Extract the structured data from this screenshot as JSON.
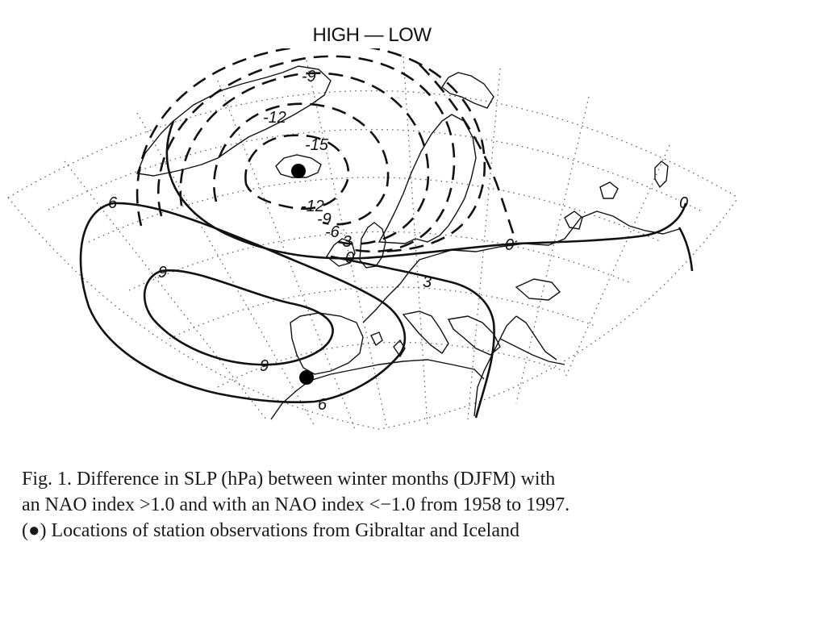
{
  "title": "HIGH — LOW",
  "contour_labels": {
    "neg9": "-9",
    "neg12_top": "-12",
    "neg15": "-15",
    "neg12_low": "-12",
    "neg9_low": "-9",
    "neg6": "-6",
    "neg3": "-3",
    "zero_west": "0",
    "zero_mid": "0",
    "zero_east": "0",
    "pos3": "3",
    "pos6_north": "6",
    "pos6_south": "6",
    "pos9_north": "9",
    "pos9_south": "9"
  },
  "stations": [
    "Gibraltar",
    "Iceland"
  ],
  "caption": {
    "line1": "Fig. 1. Difference in SLP (hPa) between winter months (DJFM) with",
    "line2": "an NAO index >1.0 and with an NAO index <−1.0 from 1958 to 1997.",
    "line3": "(●) Locations of station observations from Gibraltar and Iceland"
  }
}
